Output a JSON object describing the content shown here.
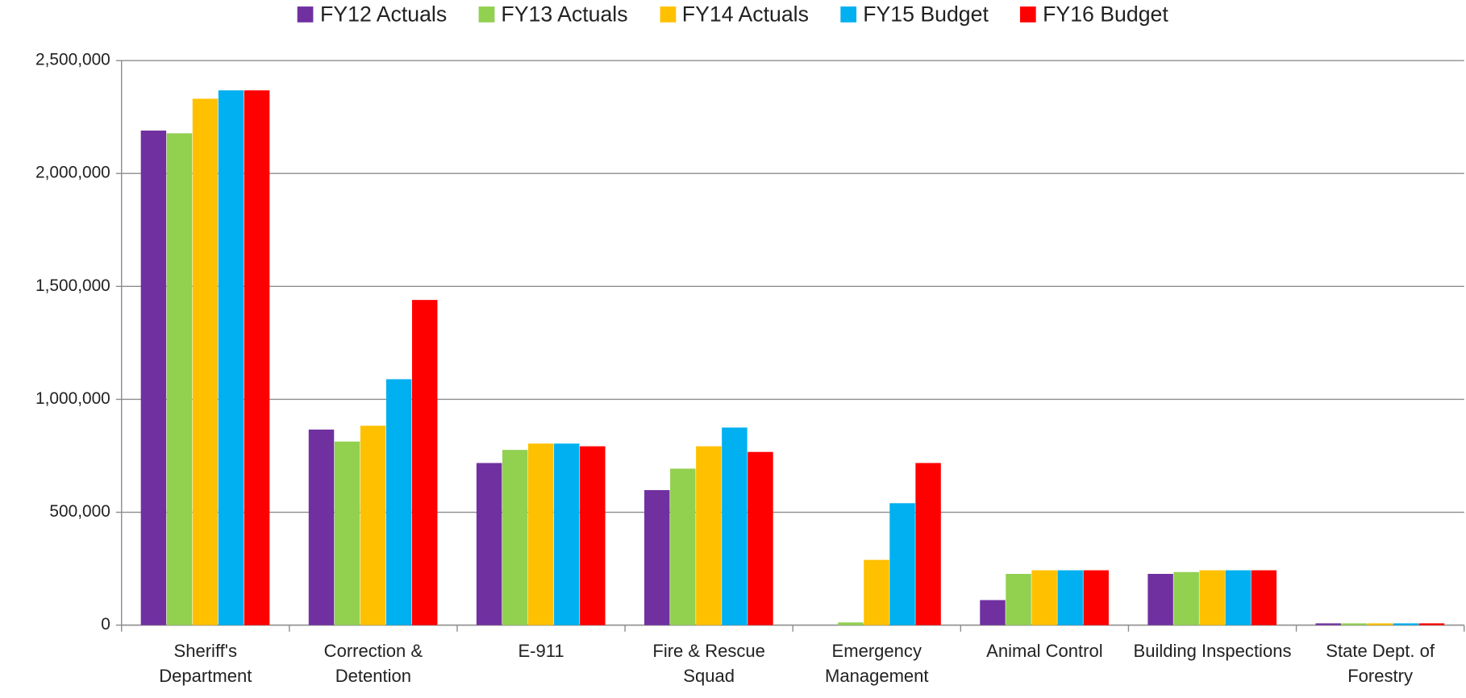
{
  "chart_data": {
    "type": "bar",
    "categories": [
      "Sheriff's Department",
      "Correction & Detention",
      "E-911",
      "Fire & Rescue Squad",
      "Emergency Management",
      "Animal Control",
      "Building Inspections",
      "State Dept. of Forestry"
    ],
    "series": [
      {
        "name": "FY12 Actuals",
        "color": "#7030a0",
        "values": [
          2190000,
          866000,
          718000,
          598000,
          0,
          111000,
          227000,
          8000
        ]
      },
      {
        "name": "FY13 Actuals",
        "color": "#92d050",
        "values": [
          2178000,
          813000,
          776000,
          693000,
          12000,
          227000,
          235000,
          8000
        ]
      },
      {
        "name": "FY14 Actuals",
        "color": "#ffc000",
        "values": [
          2331000,
          883000,
          804000,
          792000,
          289000,
          243000,
          243000,
          8000
        ]
      },
      {
        "name": "FY15 Budget",
        "color": "#00b0f0",
        "values": [
          2368000,
          1089000,
          804000,
          875000,
          540000,
          243000,
          243000,
          8000
        ]
      },
      {
        "name": "FY16 Budget",
        "color": "#ff0000",
        "values": [
          2368000,
          1440000,
          792000,
          767000,
          718000,
          243000,
          243000,
          8000
        ]
      }
    ],
    "ylim": [
      0,
      2500000
    ],
    "yticks": [
      0,
      {
        "value": 500000,
        "label": "500,000"
      },
      {
        "value": 1000000,
        "label": "1,000,000"
      },
      {
        "value": 1500000,
        "label": "1,500,000"
      },
      {
        "value": 2000000,
        "label": "2,000,000"
      },
      {
        "value": 2500000,
        "label": "2,500,000"
      }
    ],
    "grid": true
  }
}
